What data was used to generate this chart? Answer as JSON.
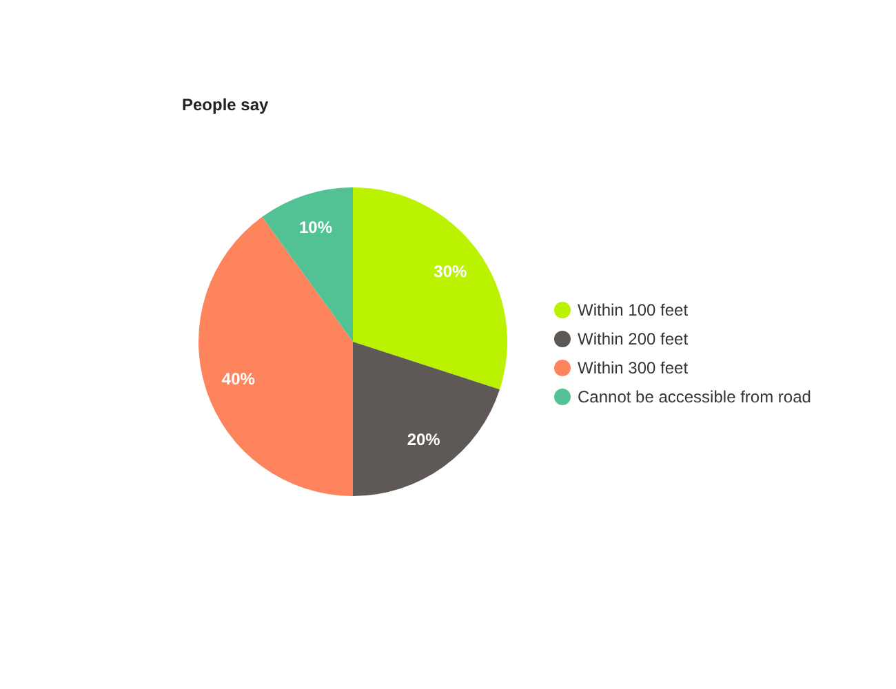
{
  "chart_data": {
    "type": "pie",
    "title": "People say",
    "categories": [
      "Within 100 feet",
      "Within 200 feet",
      "Within 300 feet",
      "Cannot be accessible from road"
    ],
    "values": [
      30,
      20,
      40,
      10
    ],
    "colors": [
      "#bbf200",
      "#5e5857",
      "#fe845e",
      "#52c193"
    ],
    "value_labels": [
      "30%",
      "20%",
      "40%",
      "10%"
    ],
    "legend": "right"
  }
}
